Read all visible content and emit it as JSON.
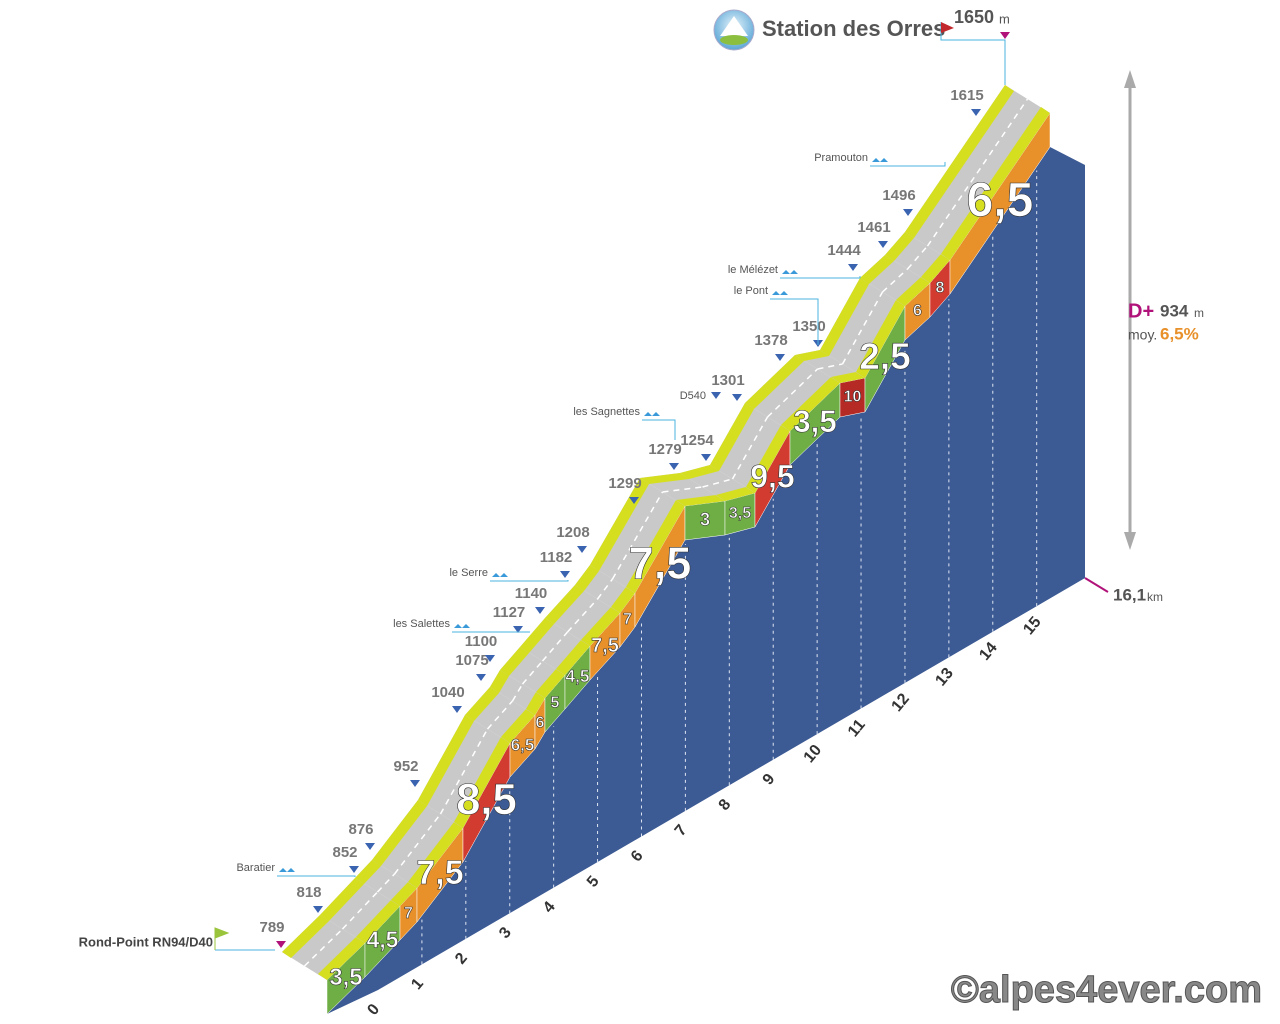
{
  "title": "Station des Orres",
  "summit": {
    "altitude": "1650",
    "unit": "m"
  },
  "start": "Rond-Point RN94/D40",
  "altitudes": [
    "789",
    "818",
    "852",
    "876",
    "952",
    "1040",
    "1075",
    "1100",
    "1127",
    "1140",
    "1182",
    "1208",
    "1299",
    "1279",
    "1254",
    "1301",
    "1378",
    "1350",
    "1444",
    "1461",
    "1496",
    "1615"
  ],
  "road": "D540",
  "places": [
    "Baratier",
    "les Salettes",
    "le Serre",
    "les Sagnettes",
    "le Pont",
    "le Mélézet",
    "Pramouton"
  ],
  "gradients": [
    {
      "label": "3,5",
      "color": "#6fae45"
    },
    {
      "label": "4,5",
      "color": "#6fae45"
    },
    {
      "label": "7",
      "color": "#e8902a"
    },
    {
      "label": "7,5",
      "color": "#e8902a"
    },
    {
      "label": "8,5",
      "color": "#d23b2f"
    },
    {
      "label": "6,5",
      "color": "#e8902a"
    },
    {
      "label": "6",
      "color": "#e8902a"
    },
    {
      "label": "5",
      "color": "#6fae45"
    },
    {
      "label": "4,5",
      "color": "#6fae45"
    },
    {
      "label": "7,5",
      "color": "#e8902a"
    },
    {
      "label": "7",
      "color": "#e8902a"
    },
    {
      "label": "7,5",
      "color": "#e8902a"
    },
    {
      "label": "3",
      "color": "#6fae45"
    },
    {
      "label": "3,5",
      "color": "#6fae45"
    },
    {
      "label": "9,5",
      "color": "#d23b2f"
    },
    {
      "label": "3,5",
      "color": "#6fae45"
    },
    {
      "label": "10",
      "color": "#b52a24"
    },
    {
      "label": "2,5",
      "color": "#6fae45"
    },
    {
      "label": "6",
      "color": "#e8902a"
    },
    {
      "label": "8",
      "color": "#d23b2f"
    },
    {
      "label": "6,5",
      "color": "#e8902a"
    }
  ],
  "km": [
    "0",
    "1",
    "2",
    "3",
    "4",
    "5",
    "6",
    "7",
    "8",
    "9",
    "10",
    "11",
    "12",
    "13",
    "14",
    "15"
  ],
  "distance": {
    "value": "16,1",
    "unit": "km"
  },
  "climb": {
    "label": "D+",
    "value": "934",
    "unit": "m"
  },
  "average": {
    "label": "moy.",
    "value": "6,5%"
  },
  "credit": "©alpes4ever.com"
}
